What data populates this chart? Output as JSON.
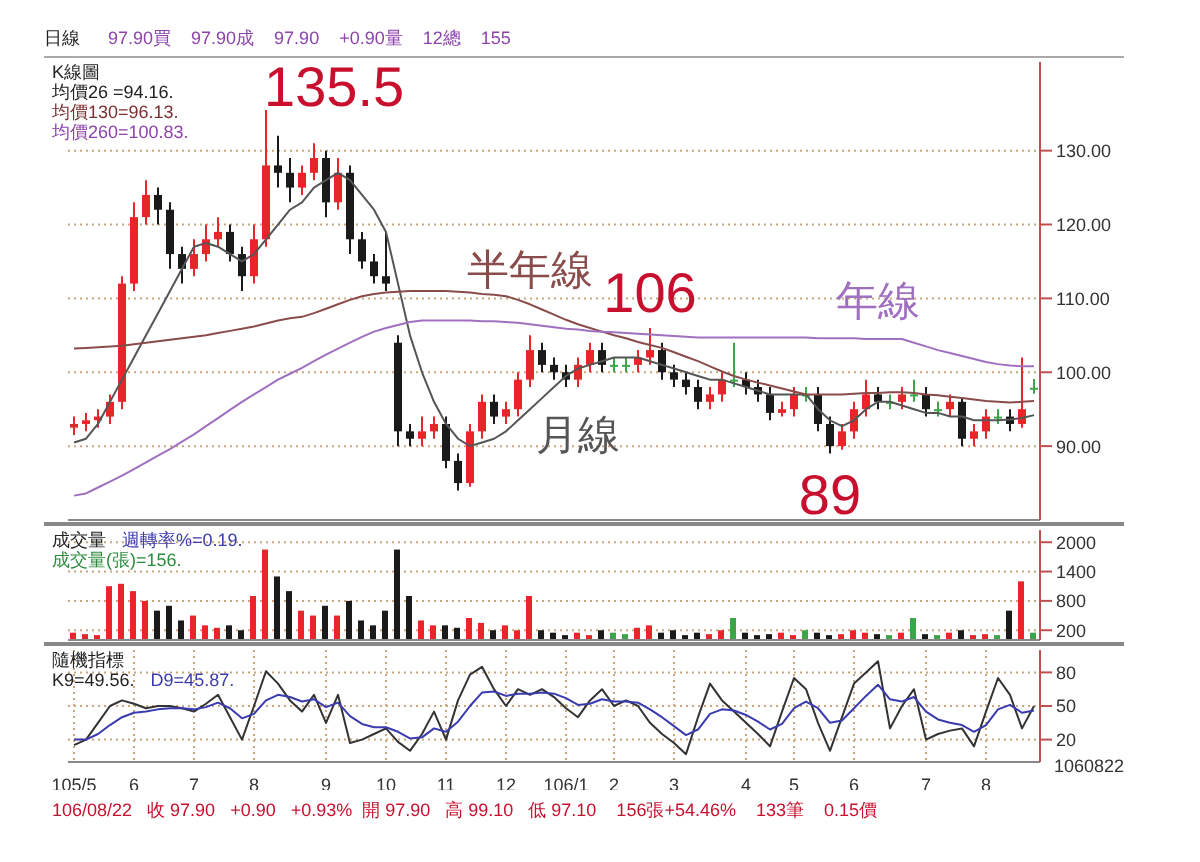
{
  "chart_data": [
    {
      "type": "candlestick",
      "title": "日線",
      "subtitle": "97.90買    97.90成    97.90    +0.90量    12總    155",
      "ohlc": [
        [
          92.5,
          94,
          91.5,
          93
        ],
        [
          93,
          94.5,
          92,
          93.5
        ],
        [
          93.5,
          95,
          92.5,
          94
        ],
        [
          94,
          97,
          93,
          96
        ],
        [
          96,
          113,
          95,
          112
        ],
        [
          112,
          123,
          111,
          121
        ],
        [
          121,
          126,
          120,
          124
        ],
        [
          124,
          125,
          120,
          122
        ],
        [
          122,
          123,
          114,
          116
        ],
        [
          116,
          117,
          112,
          114
        ],
        [
          114,
          118,
          113,
          116
        ],
        [
          116,
          120,
          115,
          118
        ],
        [
          118,
          121,
          117,
          119
        ],
        [
          119,
          120,
          115,
          116
        ],
        [
          116,
          117,
          111,
          113
        ],
        [
          113,
          120,
          112,
          118
        ],
        [
          118,
          135.5,
          117,
          128
        ],
        [
          128,
          132,
          125,
          127
        ],
        [
          127,
          129,
          123,
          125
        ],
        [
          125,
          128,
          124,
          127
        ],
        [
          127,
          131,
          126,
          129
        ],
        [
          129,
          130,
          121,
          123
        ],
        [
          123,
          129,
          122,
          127
        ],
        [
          127,
          128,
          116,
          118
        ],
        [
          118,
          119,
          114,
          115
        ],
        [
          115,
          116,
          112,
          113
        ],
        [
          113,
          119,
          111,
          112
        ],
        [
          104,
          105,
          90,
          92
        ],
        [
          92,
          93,
          90,
          91
        ],
        [
          91,
          94,
          90,
          92
        ],
        [
          92,
          94,
          91,
          93
        ],
        [
          93,
          94,
          87,
          88
        ],
        [
          88,
          89,
          84,
          85
        ],
        [
          85,
          93,
          84.5,
          92
        ],
        [
          92,
          97,
          91,
          96
        ],
        [
          96,
          97,
          93,
          94
        ],
        [
          94,
          96,
          93,
          95
        ],
        [
          95,
          100,
          94,
          99
        ],
        [
          99,
          105,
          98,
          103
        ],
        [
          103,
          104,
          100,
          101
        ],
        [
          101,
          102,
          99,
          100
        ],
        [
          100,
          101,
          98,
          99
        ],
        [
          99,
          102,
          98,
          101
        ],
        [
          101,
          104,
          100,
          103
        ],
        [
          103,
          104,
          100,
          101
        ],
        [
          101,
          102,
          100,
          101
        ],
        [
          101,
          102,
          100,
          101
        ],
        [
          101,
          103,
          100,
          102
        ],
        [
          102,
          106,
          101,
          103
        ],
        [
          103,
          104,
          99,
          100
        ],
        [
          100,
          101,
          98,
          99
        ],
        [
          99,
          100,
          97,
          98
        ],
        [
          98,
          99,
          95,
          96
        ],
        [
          96,
          98,
          95,
          97
        ],
        [
          97,
          100,
          96,
          99
        ],
        [
          99,
          104,
          98,
          99
        ],
        [
          99,
          100,
          97,
          98
        ],
        [
          98,
          99,
          96,
          97
        ],
        [
          97,
          98,
          93.5,
          94.5
        ],
        [
          94.5,
          96,
          94,
          95
        ],
        [
          95,
          98,
          94,
          97
        ],
        [
          97,
          98,
          96,
          97
        ],
        [
          97,
          98,
          92,
          93
        ],
        [
          93,
          94,
          89,
          90
        ],
        [
          90,
          93,
          89.5,
          92
        ],
        [
          92,
          96,
          91,
          95
        ],
        [
          95,
          99,
          94,
          97
        ],
        [
          97,
          98,
          95,
          96
        ],
        [
          96,
          97,
          95,
          96
        ],
        [
          96,
          98,
          95,
          97
        ],
        [
          97,
          99,
          96,
          97
        ],
        [
          97,
          98,
          94,
          95
        ],
        [
          95,
          96,
          94,
          95
        ],
        [
          95,
          97,
          94,
          96
        ],
        [
          96,
          96.5,
          90,
          91
        ],
        [
          91,
          93,
          90,
          92
        ],
        [
          92,
          95,
          91,
          94
        ],
        [
          94,
          95,
          93,
          94
        ],
        [
          94,
          95,
          92,
          93
        ],
        [
          93,
          102,
          92.5,
          95
        ],
        [
          97.9,
          99.1,
          97.1,
          97.9
        ]
      ],
      "colors": [
        "#e8262a",
        "#e8262a",
        "#e8262a",
        "#e8262a",
        "#e8262a",
        "#e8262a",
        "#e8262a",
        "#1a1a1a",
        "#1a1a1a",
        "#1a1a1a",
        "#e8262a",
        "#e8262a",
        "#e8262a",
        "#1a1a1a",
        "#1a1a1a",
        "#e8262a",
        "#e8262a",
        "#1a1a1a",
        "#1a1a1a",
        "#e8262a",
        "#e8262a",
        "#1a1a1a",
        "#e8262a",
        "#1a1a1a",
        "#1a1a1a",
        "#1a1a1a",
        "#1a1a1a",
        "#1a1a1a",
        "#1a1a1a",
        "#e8262a",
        "#e8262a",
        "#1a1a1a",
        "#1a1a1a",
        "#e8262a",
        "#e8262a",
        "#1a1a1a",
        "#e8262a",
        "#e8262a",
        "#e8262a",
        "#1a1a1a",
        "#1a1a1a",
        "#1a1a1a",
        "#e8262a",
        "#e8262a",
        "#1a1a1a",
        "#3aa648",
        "#3aa648",
        "#e8262a",
        "#e8262a",
        "#1a1a1a",
        "#1a1a1a",
        "#1a1a1a",
        "#1a1a1a",
        "#e8262a",
        "#e8262a",
        "#3aa648",
        "#1a1a1a",
        "#1a1a1a",
        "#1a1a1a",
        "#e8262a",
        "#e8262a",
        "#3aa648",
        "#1a1a1a",
        "#1a1a1a",
        "#e8262a",
        "#e8262a",
        "#e8262a",
        "#1a1a1a",
        "#3aa648",
        "#e8262a",
        "#3aa648",
        "#1a1a1a",
        "#3aa648",
        "#e8262a",
        "#1a1a1a",
        "#e8262a",
        "#e8262a",
        "#3aa648",
        "#1a1a1a",
        "#e8262a",
        "#3aa648"
      ],
      "series": [
        {
          "type": "line",
          "name": "月線",
          "color": "#555555",
          "values": [
            90.5,
            91,
            93,
            96,
            99,
            102,
            105,
            108,
            111,
            114,
            117,
            117.5,
            117,
            116,
            115,
            116,
            118,
            120,
            122,
            123,
            125,
            126,
            127,
            126,
            124,
            122,
            119,
            112,
            105,
            100,
            96,
            93,
            91,
            90,
            90.5,
            91,
            92,
            93.5,
            95,
            96.5,
            98,
            99.5,
            100.5,
            101,
            101.5,
            102,
            102,
            102,
            101.5,
            101,
            100.5,
            100,
            99.5,
            99,
            99,
            98.5,
            98,
            97.5,
            97,
            97,
            97,
            97,
            95,
            93.5,
            92.7,
            93.5,
            95,
            96,
            96,
            95.5,
            95,
            94.5,
            94.5,
            94,
            94,
            93.5,
            93.5,
            93.5,
            93.6,
            93.8,
            94.2
          ]
        },
        {
          "type": "line",
          "name": "半年線",
          "color": "#8a4b4b",
          "values": [
            103.2,
            103.3,
            103.4,
            103.5,
            103.6,
            103.8,
            104,
            104.2,
            104.4,
            104.6,
            104.8,
            105,
            105.3,
            105.6,
            105.9,
            106.2,
            106.6,
            107,
            107.3,
            107.5,
            108,
            108.6,
            109.2,
            109.8,
            110.3,
            110.6,
            110.8,
            110.9,
            111,
            111,
            111,
            111,
            110.9,
            110.8,
            110.6,
            110.5,
            110.3,
            109.8,
            109.2,
            108.5,
            107.8,
            107.1,
            106.5,
            106,
            105.5,
            105,
            104.6,
            104.1,
            103.7,
            103.3,
            102.7,
            102.1,
            101.5,
            100.8,
            100.1,
            99.5,
            99,
            98.6,
            98.2,
            97.8,
            97.4,
            97,
            97,
            97,
            97,
            97.1,
            97.2,
            97.2,
            97.3,
            97.3,
            97.2,
            97,
            96.9,
            96.7,
            96.5,
            96.3,
            96.1,
            96,
            95.9,
            96,
            96.1
          ]
        },
        {
          "type": "line",
          "name": "年線",
          "color": "#a070c0",
          "values": [
            83.3,
            83.6,
            84.4,
            85.2,
            86,
            86.9,
            87.8,
            88.7,
            89.6,
            90.6,
            91.6,
            92.7,
            93.8,
            94.9,
            96,
            97,
            98,
            99,
            99.8,
            100.6,
            101.5,
            102.4,
            103.2,
            104,
            104.8,
            105.5,
            106,
            106.4,
            106.8,
            107,
            107,
            107,
            107,
            107,
            106.9,
            106.9,
            106.8,
            106.7,
            106.5,
            106.3,
            106.1,
            105.9,
            105.8,
            105.6,
            105.5,
            105.4,
            105.3,
            105.2,
            105.1,
            105,
            104.9,
            104.8,
            104.7,
            104.7,
            104.7,
            104.7,
            104.7,
            104.7,
            104.7,
            104.7,
            104.7,
            104.7,
            104.6,
            104.6,
            104.6,
            104.6,
            104.5,
            104.5,
            104.5,
            104.5,
            104,
            103.5,
            103,
            102.6,
            102.2,
            101.8,
            101.4,
            101.1,
            100.9,
            100.8,
            100.8
          ]
        }
      ],
      "ylim": [
        80,
        142
      ],
      "yticks": [
        {
          "value": 90,
          "label": "90.00"
        },
        {
          "value": 100,
          "label": "100.00"
        },
        {
          "value": 110,
          "label": "110.00"
        },
        {
          "value": 120,
          "label": "120.00"
        },
        {
          "value": 130,
          "label": "130.00"
        }
      ],
      "grid": true,
      "tick_labels": "y",
      "annotations": [
        "K線圖",
        "均價26 =94.16.",
        "均價130=96.13.",
        "均價260=100.83.",
        "135.5",
        {
          "text": "106",
          "y": 106
        },
        {
          "text": "89",
          "y": 89
        }
      ]
    },
    {
      "type": "bar",
      "values": [
        150,
        120,
        100,
        1100,
        1150,
        1000,
        800,
        600,
        700,
        400,
        500,
        300,
        250,
        300,
        200,
        900,
        1850,
        1300,
        1000,
        600,
        500,
        700,
        500,
        800,
        400,
        300,
        600,
        1850,
        900,
        400,
        300,
        300,
        250,
        450,
        350,
        200,
        300,
        200,
        900,
        200,
        150,
        100,
        150,
        100,
        200,
        150,
        120,
        250,
        300,
        150,
        200,
        100,
        150,
        120,
        200,
        450,
        150,
        100,
        120,
        150,
        100,
        200,
        150,
        100,
        120,
        200,
        150,
        120,
        100,
        150,
        450,
        120,
        100,
        150,
        200,
        100,
        120,
        100,
        600,
        1200,
        150
      ],
      "colors": [
        "#e8262a",
        "#e8262a",
        "#e8262a",
        "#e8262a",
        "#e8262a",
        "#e8262a",
        "#e8262a",
        "#1a1a1a",
        "#1a1a1a",
        "#1a1a1a",
        "#e8262a",
        "#e8262a",
        "#e8262a",
        "#1a1a1a",
        "#1a1a1a",
        "#e8262a",
        "#e8262a",
        "#1a1a1a",
        "#1a1a1a",
        "#e8262a",
        "#e8262a",
        "#1a1a1a",
        "#e8262a",
        "#1a1a1a",
        "#1a1a1a",
        "#1a1a1a",
        "#1a1a1a",
        "#1a1a1a",
        "#1a1a1a",
        "#e8262a",
        "#e8262a",
        "#1a1a1a",
        "#1a1a1a",
        "#e8262a",
        "#e8262a",
        "#1a1a1a",
        "#e8262a",
        "#e8262a",
        "#e8262a",
        "#1a1a1a",
        "#1a1a1a",
        "#1a1a1a",
        "#e8262a",
        "#e8262a",
        "#1a1a1a",
        "#3aa648",
        "#3aa648",
        "#e8262a",
        "#e8262a",
        "#1a1a1a",
        "#1a1a1a",
        "#1a1a1a",
        "#1a1a1a",
        "#e8262a",
        "#e8262a",
        "#3aa648",
        "#1a1a1a",
        "#1a1a1a",
        "#1a1a1a",
        "#e8262a",
        "#e8262a",
        "#3aa648",
        "#1a1a1a",
        "#1a1a1a",
        "#e8262a",
        "#e8262a",
        "#e8262a",
        "#1a1a1a",
        "#3aa648",
        "#e8262a",
        "#3aa648",
        "#1a1a1a",
        "#3aa648",
        "#e8262a",
        "#1a1a1a",
        "#e8262a",
        "#e8262a",
        "#3aa648",
        "#1a1a1a",
        "#e8262a",
        "#3aa648"
      ],
      "ylim": [
        0,
        2250
      ],
      "yticks": [
        200,
        800,
        1400,
        2000
      ],
      "grid": true,
      "tick_labels": "y",
      "annotations": [
        "成交量",
        "成交量(張)=156.",
        "週轉率%=0.19."
      ]
    },
    {
      "type": "line",
      "categories": [
        "105/5",
        null,
        null,
        null,
        null,
        "6",
        null,
        null,
        null,
        null,
        "7",
        null,
        null,
        null,
        null,
        "8",
        null,
        null,
        null,
        null,
        null,
        "9",
        null,
        null,
        null,
        null,
        "10",
        null,
        null,
        null,
        null,
        "11",
        null,
        null,
        null,
        null,
        "12",
        null,
        null,
        null,
        null,
        "106/1",
        null,
        null,
        null,
        "2",
        null,
        null,
        null,
        null,
        "3",
        null,
        null,
        null,
        null,
        null,
        "4",
        null,
        null,
        null,
        "5",
        null,
        null,
        null,
        null,
        "6",
        null,
        null,
        null,
        null,
        null,
        "7",
        null,
        null,
        null,
        null,
        "8",
        null,
        null,
        null,
        null
      ],
      "series": [
        {
          "color": "#333333",
          "values": [
            15,
            20,
            35,
            50,
            55,
            52,
            48,
            50,
            50,
            48,
            45,
            52,
            60,
            40,
            20,
            50,
            81,
            70,
            55,
            45,
            60,
            35,
            60,
            17,
            20,
            25,
            30,
            18,
            10,
            25,
            45,
            20,
            55,
            78,
            85,
            65,
            50,
            65,
            60,
            65,
            58,
            48,
            40,
            55,
            65,
            50,
            55,
            50,
            35,
            25,
            17,
            7,
            40,
            70,
            55,
            45,
            35,
            25,
            14,
            45,
            75,
            65,
            35,
            10,
            40,
            70,
            80,
            90,
            30,
            50,
            65,
            20,
            25,
            28,
            30,
            14,
            45,
            75,
            60,
            30,
            50
          ]
        },
        {
          "color": "#3b3bb0",
          "values": [
            20,
            20,
            25,
            33,
            40,
            44,
            45,
            47,
            48,
            48,
            47,
            49,
            53,
            48,
            39,
            43,
            55,
            60,
            58,
            54,
            56,
            49,
            53,
            41,
            34,
            31,
            31,
            27,
            21,
            22,
            30,
            27,
            36,
            50,
            62,
            63,
            59,
            61,
            61,
            62,
            61,
            57,
            51,
            52,
            56,
            54,
            54,
            53,
            47,
            40,
            32,
            24,
            29,
            43,
            47,
            46,
            42,
            36,
            29,
            34,
            48,
            54,
            48,
            35,
            37,
            48,
            59,
            69,
            56,
            54,
            58,
            45,
            38,
            35,
            33,
            27,
            33,
            47,
            51,
            44,
            46
          ]
        }
      ],
      "ylim": [
        0,
        100
      ],
      "yticks": [
        20,
        50,
        80
      ],
      "grid": true,
      "annotations": [
        "隨機指標",
        "K9=49.56.",
        "D9=45.87.",
        "1060822",
        "106/08/22   收 97.90   +0.90   +0.93%  開 97.90   高 99.10   低 97.10    156張+54.46%    133筆    0.15價"
      ]
    }
  ]
}
